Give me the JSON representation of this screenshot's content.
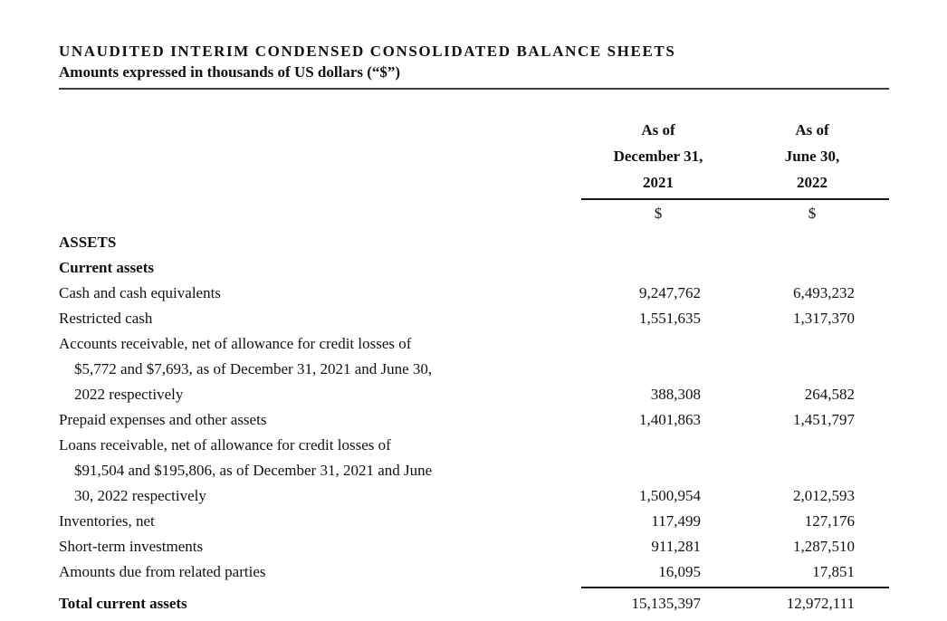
{
  "document": {
    "title": "UNAUDITED INTERIM CONDENSED CONSOLIDATED BALANCE SHEETS",
    "subtitle": "Amounts expressed in thousands of US dollars (“$”)"
  },
  "table": {
    "columns": [
      {
        "header_lines": [
          "As of",
          "December 31,",
          "2021"
        ],
        "currency_symbol": "$"
      },
      {
        "header_lines": [
          "As of",
          "June 30,",
          "2022"
        ],
        "currency_symbol": "$"
      }
    ],
    "rows": [
      {
        "label": "ASSETS",
        "style": "section-header"
      },
      {
        "label": "Current assets",
        "style": "section-header"
      },
      {
        "label": "Cash and cash equivalents",
        "col1": "9,247,762",
        "col2": "6,493,232"
      },
      {
        "label": "Restricted cash",
        "col1": "1,551,635",
        "col2": "1,317,370"
      },
      {
        "lines": [
          "Accounts receivable, net of allowance for credit losses of",
          "$5,772 and $7,693, as of December 31, 2021 and June 30,",
          "2022 respectively"
        ],
        "col1": "388,308",
        "col2": "264,582"
      },
      {
        "label": "Prepaid expenses and other assets",
        "col1": "1,401,863",
        "col2": "1,451,797"
      },
      {
        "lines": [
          "Loans receivable, net of allowance for credit losses of",
          "$91,504 and $195,806, as of December 31, 2021 and June",
          "30, 2022 respectively"
        ],
        "col1": "1,500,954",
        "col2": "2,012,593"
      },
      {
        "label": "Inventories, net",
        "col1": "117,499",
        "col2": "127,176"
      },
      {
        "label": "Short-term investments",
        "col1": "911,281",
        "col2": "1,287,510"
      },
      {
        "label": "Amounts due from related parties",
        "col1": "16,095",
        "col2": "17,851"
      },
      {
        "label": "Total current assets",
        "col1": "15,135,397",
        "col2": "12,972,111",
        "style": "total"
      }
    ]
  }
}
